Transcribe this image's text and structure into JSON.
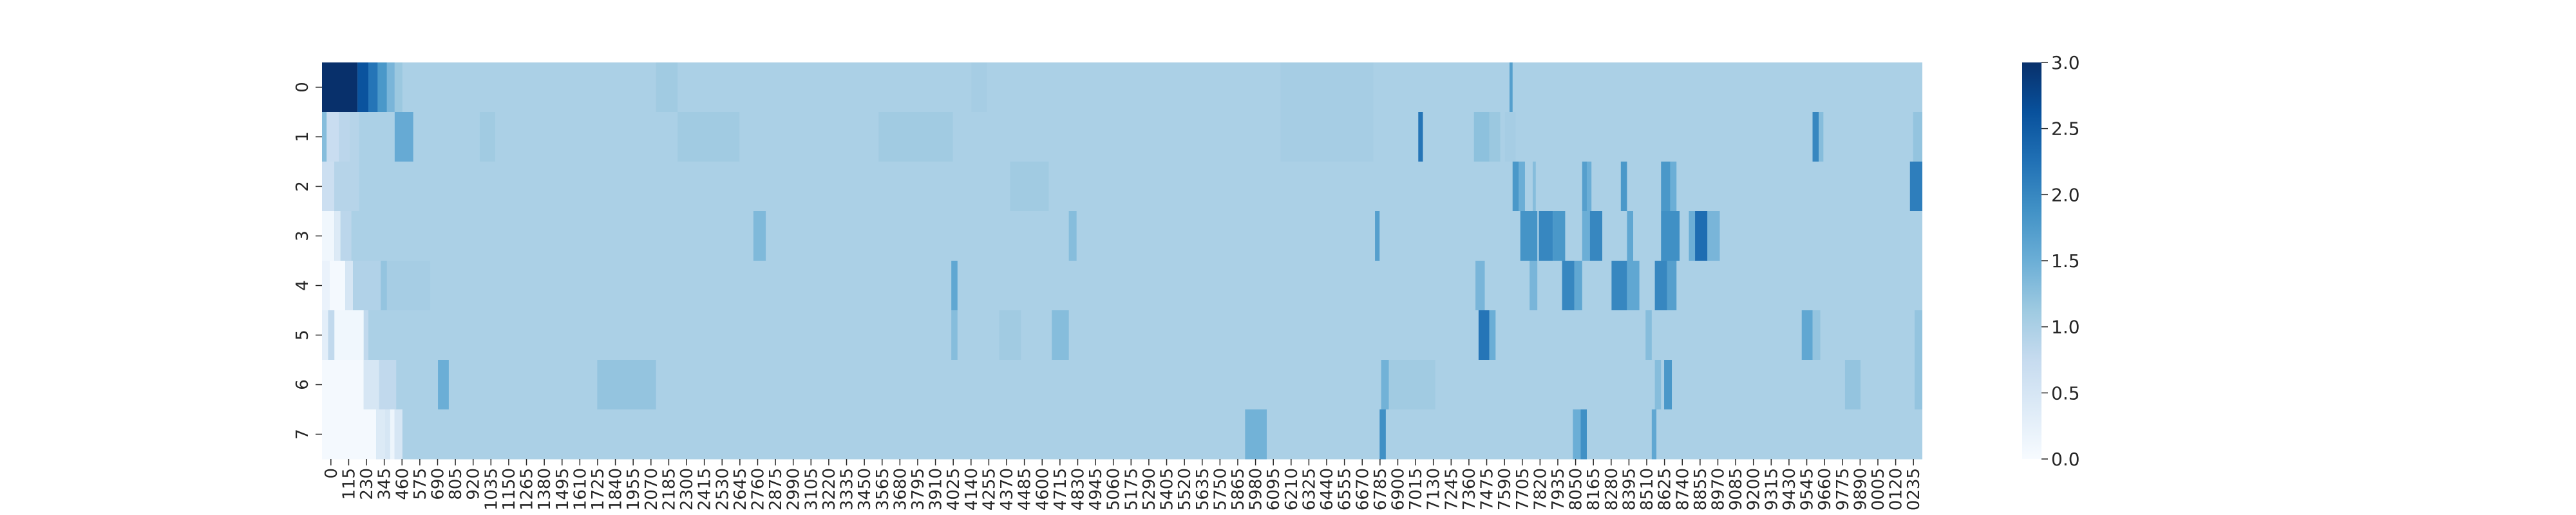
{
  "chart_data": {
    "type": "heatmap",
    "title": "",
    "xlabel": "",
    "ylabel": "",
    "rows": [
      "0",
      "1",
      "2",
      "3",
      "4",
      "5",
      "6",
      "7"
    ],
    "x_tick_labels": [
      "0",
      "115",
      "230",
      "345",
      "460",
      "575",
      "690",
      "805",
      "920",
      "1035",
      "1150",
      "1265",
      "1380",
      "1495",
      "1610",
      "1725",
      "1840",
      "1955",
      "2070",
      "2185",
      "2300",
      "2415",
      "2530",
      "2645",
      "2760",
      "2875",
      "2990",
      "3105",
      "3220",
      "3335",
      "3450",
      "3565",
      "3680",
      "3795",
      "3910",
      "4025",
      "4140",
      "4255",
      "4370",
      "4485",
      "4600",
      "4715",
      "4830",
      "4945",
      "5060",
      "5175",
      "5290",
      "5405",
      "5520",
      "5635",
      "5750",
      "5865",
      "5980",
      "6095",
      "6210",
      "6325",
      "6440",
      "6555",
      "6670",
      "6785",
      "6900",
      "7015",
      "7130",
      "7245",
      "7360",
      "7475",
      "7590",
      "7705",
      "7820",
      "7935",
      "8050",
      "8165",
      "8280",
      "8395",
      "8510",
      "8625",
      "8740",
      "8855",
      "8970",
      "9085",
      "9200",
      "9315",
      "9430",
      "9545",
      "9660",
      "9775",
      "9890",
      "0005",
      "0120",
      "0235"
    ],
    "x_range": [
      0,
      10350
    ],
    "colorbar": {
      "min": 0.0,
      "max": 3.0,
      "ticks": [
        "0.0",
        "0.5",
        "1.0",
        "1.5",
        "2.0",
        "2.5",
        "3.0"
      ],
      "colormap": "Blues"
    },
    "baseline_value": 1.0,
    "segments": [
      [
        [
          0,
          230,
          3.0
        ],
        [
          230,
          300,
          2.6
        ],
        [
          300,
          360,
          2.2
        ],
        [
          360,
          420,
          1.8
        ],
        [
          420,
          470,
          1.4
        ],
        [
          470,
          520,
          1.15
        ],
        [
          2160,
          2300,
          1.1
        ],
        [
          4200,
          4300,
          1.05
        ],
        [
          6200,
          6800,
          1.05
        ],
        [
          7680,
          7700,
          1.7
        ]
      ],
      [
        [
          0,
          30,
          1.3
        ],
        [
          30,
          110,
          0.7
        ],
        [
          110,
          180,
          0.85
        ],
        [
          180,
          240,
          0.9
        ],
        [
          470,
          590,
          1.55
        ],
        [
          1020,
          1120,
          1.1
        ],
        [
          2300,
          2700,
          1.1
        ],
        [
          3600,
          4080,
          1.1
        ],
        [
          6200,
          6800,
          1.05
        ],
        [
          7090,
          7120,
          2.2
        ],
        [
          7450,
          7550,
          1.25
        ],
        [
          7550,
          7620,
          1.15
        ],
        [
          7650,
          7720,
          1.05
        ],
        [
          9640,
          9680,
          2.0
        ],
        [
          9680,
          9710,
          1.3
        ],
        [
          10290,
          10350,
          1.2
        ]
      ],
      [
        [
          0,
          80,
          0.65
        ],
        [
          80,
          240,
          0.9
        ],
        [
          4450,
          4700,
          1.1
        ],
        [
          7700,
          7740,
          1.8
        ],
        [
          7740,
          7780,
          1.5
        ],
        [
          7830,
          7850,
          1.3
        ],
        [
          8150,
          8180,
          1.7
        ],
        [
          8180,
          8210,
          1.5
        ],
        [
          8400,
          8440,
          1.8
        ],
        [
          8660,
          8720,
          1.8
        ],
        [
          8720,
          8760,
          1.5
        ],
        [
          10270,
          10350,
          2.1
        ]
      ],
      [
        [
          0,
          80,
          0.1
        ],
        [
          80,
          120,
          0.4
        ],
        [
          120,
          190,
          0.85
        ],
        [
          2790,
          2870,
          1.35
        ],
        [
          4830,
          4880,
          1.3
        ],
        [
          6810,
          6840,
          1.7
        ],
        [
          7750,
          7860,
          1.85
        ],
        [
          7870,
          7960,
          2.0
        ],
        [
          7960,
          8040,
          1.8
        ],
        [
          8150,
          8200,
          1.5
        ],
        [
          8200,
          8280,
          2.0
        ],
        [
          8440,
          8480,
          1.6
        ],
        [
          8660,
          8780,
          1.9
        ],
        [
          8840,
          8880,
          1.5
        ],
        [
          8880,
          8960,
          2.3
        ],
        [
          8960,
          9040,
          1.4
        ]
      ],
      [
        [
          0,
          50,
          0.2
        ],
        [
          50,
          150,
          0.05
        ],
        [
          150,
          200,
          0.5
        ],
        [
          200,
          380,
          0.95
        ],
        [
          380,
          420,
          1.2
        ],
        [
          420,
          700,
          1.05
        ],
        [
          4070,
          4110,
          1.6
        ],
        [
          7460,
          7520,
          1.4
        ],
        [
          7810,
          7860,
          1.4
        ],
        [
          8020,
          8100,
          2.0
        ],
        [
          8100,
          8150,
          1.6
        ],
        [
          8340,
          8440,
          2.0
        ],
        [
          8440,
          8520,
          1.6
        ],
        [
          8620,
          8700,
          2.0
        ],
        [
          8700,
          8760,
          1.7
        ]
      ],
      [
        [
          0,
          40,
          0.3
        ],
        [
          40,
          80,
          0.8
        ],
        [
          80,
          270,
          0.1
        ],
        [
          270,
          300,
          0.8
        ],
        [
          4070,
          4110,
          1.3
        ],
        [
          4380,
          4520,
          1.1
        ],
        [
          4720,
          4830,
          1.3
        ],
        [
          7480,
          7550,
          2.2
        ],
        [
          7550,
          7590,
          1.5
        ],
        [
          8560,
          8600,
          1.3
        ],
        [
          9570,
          9640,
          1.6
        ],
        [
          9640,
          9690,
          1.2
        ],
        [
          10300,
          10350,
          1.2
        ]
      ],
      [
        [
          0,
          270,
          0.05
        ],
        [
          270,
          370,
          0.5
        ],
        [
          370,
          480,
          0.8
        ],
        [
          750,
          820,
          1.5
        ],
        [
          1780,
          2160,
          1.2
        ],
        [
          6850,
          6900,
          1.45
        ],
        [
          6900,
          7200,
          1.1
        ],
        [
          8620,
          8660,
          1.3
        ],
        [
          8680,
          8730,
          1.8
        ],
        [
          9850,
          9950,
          1.2
        ],
        [
          10300,
          10350,
          1.2
        ]
      ],
      [
        [
          0,
          350,
          0.05
        ],
        [
          350,
          410,
          0.4
        ],
        [
          410,
          440,
          0.5
        ],
        [
          440,
          470,
          0.15
        ],
        [
          470,
          520,
          0.5
        ],
        [
          5970,
          6110,
          1.45
        ],
        [
          6840,
          6880,
          1.9
        ],
        [
          8090,
          8140,
          1.5
        ],
        [
          8140,
          8180,
          1.9
        ],
        [
          8600,
          8630,
          1.6
        ]
      ]
    ]
  }
}
